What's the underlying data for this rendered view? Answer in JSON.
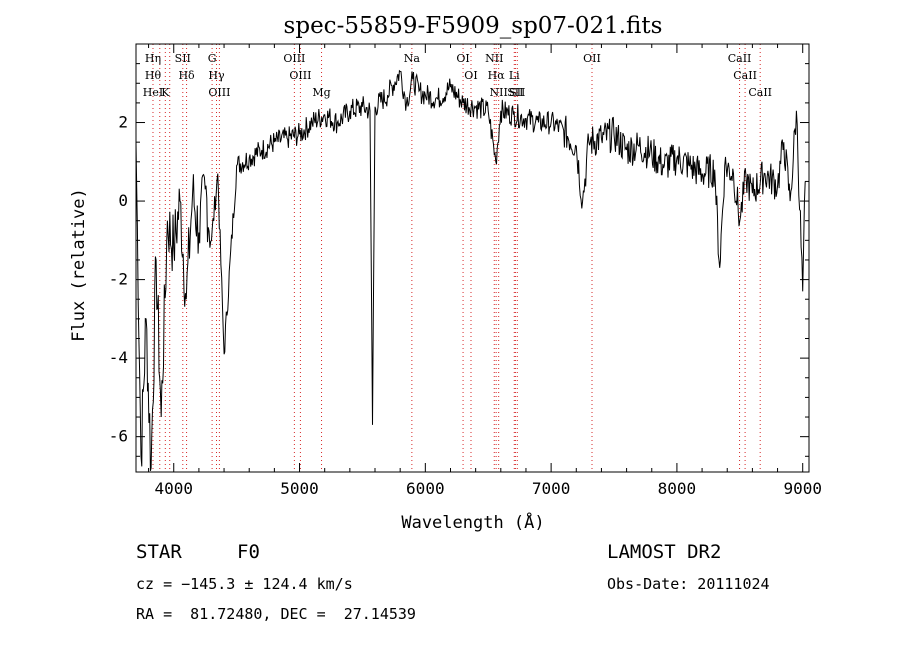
{
  "chart_data": {
    "type": "line",
    "title": "spec-55859-F5909_sp07-021.fits",
    "xlabel": "Wavelength (Å)",
    "ylabel": "Flux (relative)",
    "xlim": [
      3700,
      9050
    ],
    "ylim": [
      -6.9,
      4.0
    ],
    "xticks": [
      4000,
      5000,
      6000,
      7000,
      8000,
      9000
    ],
    "yticks": [
      -6,
      -4,
      -2,
      0,
      2
    ],
    "line_color": "#000000",
    "marker_color": "#d62728",
    "series": [
      {
        "x": [
          3700,
          3740,
          3780,
          3820,
          3860,
          3900,
          3950,
          4000,
          4050,
          4100,
          4150,
          4200,
          4250,
          4300,
          4350,
          4400,
          4500,
          4600,
          4700,
          4800,
          4900,
          5000,
          5100,
          5200,
          5300,
          5400,
          5500,
          5560,
          5580,
          5600,
          5700,
          5800,
          5850,
          5900,
          5950,
          6000,
          6100,
          6200,
          6300,
          6400,
          6500,
          6560,
          6600,
          6700,
          6800,
          6900,
          7000,
          7100,
          7200,
          7250,
          7300,
          7400,
          7500,
          7600,
          7700,
          7800,
          7900,
          8000,
          8100,
          8200,
          8300,
          8340,
          8380,
          8450,
          8500,
          8550,
          8600,
          8700,
          8800,
          8850,
          8900,
          8950,
          9000,
          9020
        ],
        "y": [
          1.5,
          -6.5,
          -3.0,
          -6.8,
          -1.5,
          -5.5,
          -0.5,
          -1.2,
          0.0,
          -2.5,
          0.2,
          -0.8,
          0.3,
          -1.0,
          0.7,
          -3.9,
          0.9,
          1.1,
          1.3,
          1.5,
          1.6,
          1.7,
          2.0,
          2.2,
          2.0,
          2.3,
          2.4,
          2.3,
          -5.7,
          2.4,
          2.7,
          3.3,
          2.5,
          3.1,
          2.8,
          2.7,
          2.6,
          2.9,
          2.5,
          2.4,
          2.3,
          1.0,
          2.3,
          2.2,
          2.1,
          2.0,
          2.0,
          1.8,
          1.4,
          0.0,
          1.5,
          1.6,
          1.7,
          1.3,
          1.4,
          1.2,
          0.9,
          1.1,
          0.9,
          0.7,
          0.8,
          -1.7,
          0.9,
          0.7,
          -0.5,
          0.6,
          0.2,
          0.7,
          0.4,
          1.5,
          0.0,
          2.3,
          -2.3,
          0.5
        ]
      }
    ],
    "lines": [
      {
        "wl": 3835,
        "labels": [
          "Hη",
          "Hθ",
          "HeI"
        ]
      },
      {
        "wl": 3889,
        "labels": []
      },
      {
        "wl": 3933,
        "labels": [
          "K"
        ]
      },
      {
        "wl": 3968,
        "labels": []
      },
      {
        "wl": 4072,
        "labels": [
          "SII"
        ]
      },
      {
        "wl": 4102,
        "labels": [
          "Hδ"
        ]
      },
      {
        "wl": 4305,
        "labels": [
          "G"
        ]
      },
      {
        "wl": 4340,
        "labels": [
          "Hγ"
        ]
      },
      {
        "wl": 4363,
        "labels": [
          "OIII"
        ]
      },
      {
        "wl": 4959,
        "labels": [
          "OIII"
        ]
      },
      {
        "wl": 5007,
        "labels": [
          "OIII"
        ]
      },
      {
        "wl": 5175,
        "labels": [
          "Mg"
        ]
      },
      {
        "wl": 5893,
        "labels": [
          "Na"
        ]
      },
      {
        "wl": 6300,
        "labels": [
          "OI"
        ]
      },
      {
        "wl": 6363,
        "labels": [
          "OI"
        ]
      },
      {
        "wl": 6548,
        "labels": [
          "NII"
        ]
      },
      {
        "wl": 6563,
        "labels": [
          "Hα"
        ]
      },
      {
        "wl": 6583,
        "labels": [
          "NII"
        ]
      },
      {
        "wl": 6707,
        "labels": [
          "Li"
        ]
      },
      {
        "wl": 6716,
        "labels": [
          "SII"
        ]
      },
      {
        "wl": 6731,
        "labels": [
          "SII"
        ]
      },
      {
        "wl": 7325,
        "labels": [
          "OII"
        ]
      },
      {
        "wl": 8498,
        "labels": [
          "CaII"
        ]
      },
      {
        "wl": 8542,
        "labels": [
          "CaII"
        ]
      },
      {
        "wl": 8662,
        "labels": [
          "CaII"
        ]
      }
    ]
  },
  "info": {
    "object_class": "STAR",
    "subclass": "F0",
    "survey": "LAMOST DR2",
    "redshift": "cz = −145.3 ± 124.4 km/s",
    "obs_date": "Obs-Date: 20111024",
    "coords": "RA =  81.72480, DEC =  27.14539"
  }
}
